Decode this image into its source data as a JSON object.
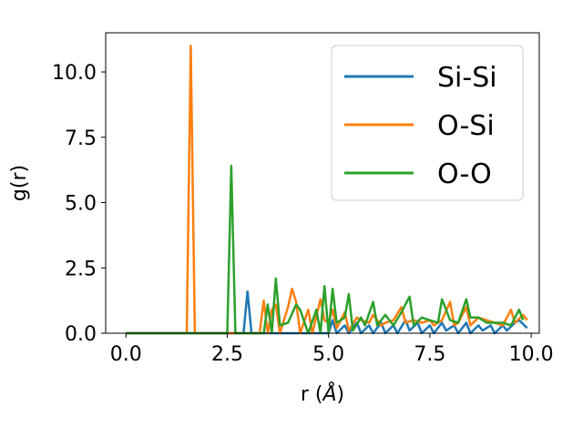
{
  "chart_data": {
    "type": "line",
    "title": "",
    "xlabel_prefix": "r (",
    "xlabel_unit": "Å",
    "xlabel_suffix": ")",
    "ylabel": "g(r)",
    "xlim": [
      -0.5,
      10.2
    ],
    "ylim": [
      0,
      11.5
    ],
    "xticks": [
      0,
      2.5,
      5,
      7.5,
      10
    ],
    "xtick_labels": [
      "0.0",
      "2.5",
      "5.0",
      "7.5",
      "10.0"
    ],
    "yticks": [
      0,
      2.5,
      5,
      7.5,
      10
    ],
    "ytick_labels": [
      "0.0",
      "2.5",
      "5.0",
      "7.5",
      "10.0"
    ],
    "grid": false,
    "legend_position": "top-right",
    "series": [
      {
        "name": "Si-Si",
        "color": "#1f77b4",
        "points": [
          [
            0,
            0
          ],
          [
            2.9,
            0
          ],
          [
            3.0,
            1.6
          ],
          [
            3.1,
            0
          ],
          [
            5.0,
            0
          ],
          [
            5.1,
            0.5
          ],
          [
            5.2,
            0
          ],
          [
            5.4,
            0.3
          ],
          [
            5.5,
            0
          ],
          [
            5.7,
            0.4
          ],
          [
            5.8,
            0
          ],
          [
            6.0,
            0.3
          ],
          [
            6.1,
            0
          ],
          [
            6.3,
            0.4
          ],
          [
            6.4,
            0
          ],
          [
            6.6,
            0.3
          ],
          [
            6.7,
            0
          ],
          [
            6.9,
            0.5
          ],
          [
            7.0,
            0.1
          ],
          [
            7.2,
            0.4
          ],
          [
            7.3,
            0
          ],
          [
            7.5,
            0.3
          ],
          [
            7.6,
            0
          ],
          [
            7.8,
            0.4
          ],
          [
            7.9,
            0.1
          ],
          [
            8.1,
            0.3
          ],
          [
            8.2,
            0
          ],
          [
            8.4,
            0.4
          ],
          [
            8.5,
            0
          ],
          [
            8.7,
            0.3
          ],
          [
            8.8,
            0.1
          ],
          [
            9.0,
            0.3
          ],
          [
            9.1,
            0
          ],
          [
            9.3,
            0.3
          ],
          [
            9.4,
            0.1
          ],
          [
            9.6,
            0.4
          ],
          [
            9.7,
            0.5
          ],
          [
            9.9,
            0.2
          ]
        ]
      },
      {
        "name": "O-Si",
        "color": "#ff7f0e",
        "points": [
          [
            0,
            0
          ],
          [
            1.5,
            0
          ],
          [
            1.6,
            11.0
          ],
          [
            1.7,
            0
          ],
          [
            3.3,
            0
          ],
          [
            3.4,
            1.25
          ],
          [
            3.5,
            0
          ],
          [
            3.6,
            0.9
          ],
          [
            3.7,
            1.1
          ],
          [
            3.8,
            0
          ],
          [
            4.0,
            1.0
          ],
          [
            4.1,
            1.7
          ],
          [
            4.2,
            1.2
          ],
          [
            4.3,
            0
          ],
          [
            4.5,
            0.9
          ],
          [
            4.6,
            0
          ],
          [
            4.8,
            1.3
          ],
          [
            4.9,
            0.5
          ],
          [
            5.0,
            0.4
          ],
          [
            5.1,
            0.9
          ],
          [
            5.2,
            0.2
          ],
          [
            5.4,
            0.8
          ],
          [
            5.5,
            0.1
          ],
          [
            5.7,
            0.6
          ],
          [
            5.8,
            0.5
          ],
          [
            6.0,
            0.4
          ],
          [
            6.1,
            0.7
          ],
          [
            6.3,
            0.3
          ],
          [
            6.4,
            0.4
          ],
          [
            6.6,
            0.5
          ],
          [
            6.8,
            1.0
          ],
          [
            6.9,
            0.4
          ],
          [
            7.1,
            0.5
          ],
          [
            7.3,
            0.4
          ],
          [
            7.5,
            0.5
          ],
          [
            7.6,
            0.3
          ],
          [
            7.8,
            0.5
          ],
          [
            8.0,
            1.2
          ],
          [
            8.1,
            0.3
          ],
          [
            8.2,
            0.4
          ],
          [
            8.4,
            1.0
          ],
          [
            8.5,
            0.3
          ],
          [
            8.7,
            0.6
          ],
          [
            8.9,
            0.5
          ],
          [
            9.1,
            0.4
          ],
          [
            9.3,
            0.3
          ],
          [
            9.5,
            0.9
          ],
          [
            9.6,
            0.4
          ],
          [
            9.8,
            0.7
          ],
          [
            9.9,
            0.5
          ]
        ]
      },
      {
        "name": "O-O",
        "color": "#2ca02c",
        "points": [
          [
            0,
            0
          ],
          [
            2.5,
            0
          ],
          [
            2.6,
            6.4
          ],
          [
            2.7,
            0
          ],
          [
            3.4,
            0
          ],
          [
            3.5,
            1.1
          ],
          [
            3.6,
            0
          ],
          [
            3.7,
            2.1
          ],
          [
            3.8,
            0.3
          ],
          [
            4.0,
            0.4
          ],
          [
            4.2,
            1.1
          ],
          [
            4.3,
            0.9
          ],
          [
            4.5,
            0
          ],
          [
            4.7,
            0.9
          ],
          [
            4.8,
            0
          ],
          [
            4.9,
            1.8
          ],
          [
            5.0,
            0
          ],
          [
            5.1,
            1.7
          ],
          [
            5.2,
            0.4
          ],
          [
            5.4,
            0.6
          ],
          [
            5.5,
            1.5
          ],
          [
            5.6,
            0.1
          ],
          [
            5.8,
            0.6
          ],
          [
            5.9,
            0.3
          ],
          [
            6.1,
            1.2
          ],
          [
            6.2,
            0.3
          ],
          [
            6.4,
            0.7
          ],
          [
            6.6,
            0.3
          ],
          [
            6.8,
            0.8
          ],
          [
            7.0,
            1.4
          ],
          [
            7.1,
            0.3
          ],
          [
            7.3,
            0.6
          ],
          [
            7.5,
            0.5
          ],
          [
            7.7,
            0.4
          ],
          [
            7.8,
            1.3
          ],
          [
            8.0,
            0.5
          ],
          [
            8.2,
            0.4
          ],
          [
            8.4,
            1.3
          ],
          [
            8.5,
            0.6
          ],
          [
            8.7,
            0.6
          ],
          [
            8.9,
            0.4
          ],
          [
            9.1,
            0.4
          ],
          [
            9.3,
            0.4
          ],
          [
            9.5,
            0.3
          ],
          [
            9.7,
            0.9
          ],
          [
            9.8,
            0.5
          ]
        ]
      }
    ]
  }
}
